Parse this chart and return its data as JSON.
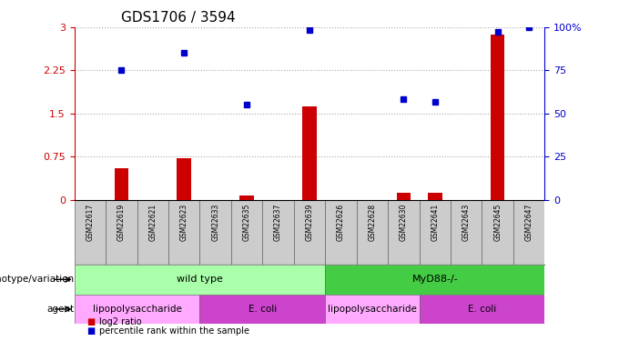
{
  "title": "GDS1706 / 3594",
  "samples": [
    "GSM22617",
    "GSM22619",
    "GSM22621",
    "GSM22623",
    "GSM22633",
    "GSM22635",
    "GSM22637",
    "GSM22639",
    "GSM22626",
    "GSM22628",
    "GSM22630",
    "GSM22641",
    "GSM22643",
    "GSM22645",
    "GSM22647"
  ],
  "log2_ratio": [
    0,
    0.55,
    0,
    0.72,
    0,
    0.08,
    0,
    1.62,
    0,
    0,
    0.12,
    0.12,
    0,
    2.88,
    0
  ],
  "percentile_rank": [
    0,
    2.25,
    0,
    2.55,
    0,
    1.65,
    0,
    2.95,
    0,
    0,
    1.75,
    1.7,
    0,
    2.92,
    3.0
  ],
  "percentile_rank_pct": [
    0,
    75,
    0,
    85,
    0,
    55,
    0,
    98,
    0,
    0,
    58,
    56,
    0,
    97,
    100
  ],
  "bar_color": "#cc0000",
  "dot_color": "#0000cc",
  "ylim": [
    0,
    3.0
  ],
  "yticks": [
    0,
    0.75,
    1.5,
    2.25,
    3.0
  ],
  "ytick_labels": [
    "0",
    "0.75",
    "1.5",
    "2.25",
    "3"
  ],
  "right_yticks": [
    0,
    25,
    50,
    75,
    100
  ],
  "right_ytick_labels": [
    "0",
    "25",
    "50",
    "75",
    "100%"
  ],
  "left_ylabel_color": "#cc0000",
  "right_ylabel_color": "#0000cc",
  "genotype_groups": [
    {
      "label": "wild type",
      "start": 0,
      "end": 7,
      "color": "#aaffaa"
    },
    {
      "label": "MyD88-/-",
      "start": 8,
      "end": 14,
      "color": "#44cc44"
    }
  ],
  "agent_groups": [
    {
      "label": "lipopolysaccharide",
      "start": 0,
      "end": 3,
      "color": "#ffaaff"
    },
    {
      "label": "E. coli",
      "start": 4,
      "end": 7,
      "color": "#cc44cc"
    },
    {
      "label": "lipopolysaccharide",
      "start": 8,
      "end": 10,
      "color": "#ffaaff"
    },
    {
      "label": "E. coli",
      "start": 11,
      "end": 14,
      "color": "#cc44cc"
    }
  ],
  "genotype_label": "genotype/variation",
  "agent_label": "agent",
  "legend_bar_label": "log2 ratio",
  "legend_dot_label": "percentile rank within the sample",
  "background_color": "#ffffff",
  "plot_bg_color": "#ffffff",
  "grid_color": "#aaaaaa",
  "sample_bg_color": "#cccccc"
}
